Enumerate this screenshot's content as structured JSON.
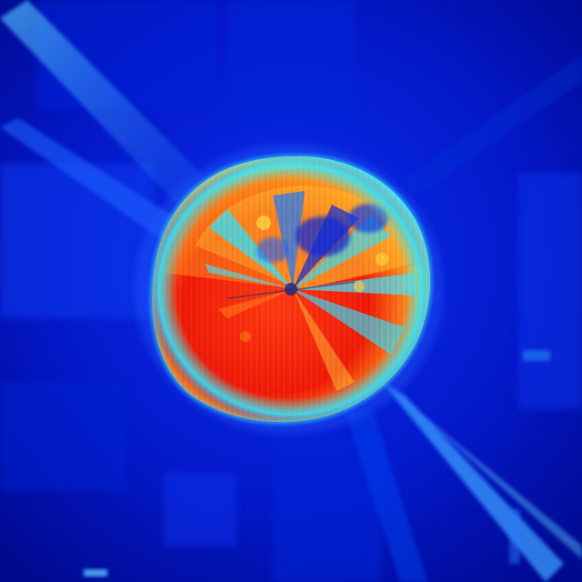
{
  "image": {
    "kind": "heatmap-visualization",
    "colormap": "jet",
    "colors": {
      "background_dark": "#0010b0",
      "background_mid": "#0a2ae0",
      "streak": "#2a7bff",
      "streak_bright": "#56c8ff",
      "hot_red": "#e81f0c",
      "hot_orange": "#ff7a10",
      "warm_yellow": "#ffd23a",
      "cyan": "#2ee0ff",
      "center_dark": "#1a2a80"
    }
  }
}
